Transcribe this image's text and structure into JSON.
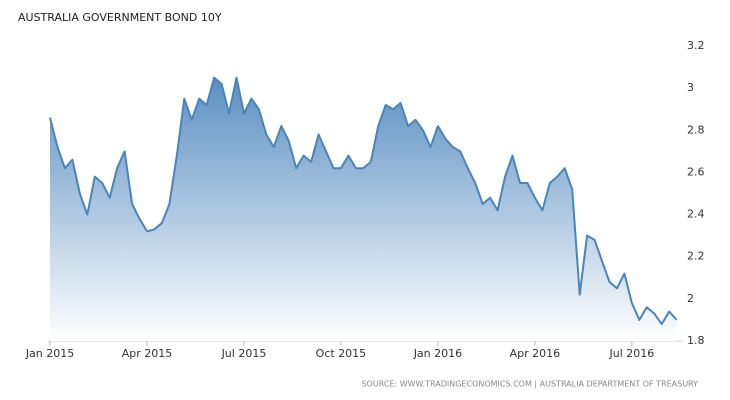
{
  "chart_data": {
    "type": "area",
    "title": "AUSTRALIA GOVERNMENT BOND 10Y",
    "source": "SOURCE: WWW.TRADINGECONOMICS.COM | AUSTRALIA DEPARTMENT OF TREASURY",
    "categories": [
      "Jan 2015",
      null,
      null,
      null,
      null,
      null,
      null,
      null,
      null,
      null,
      null,
      null,
      null,
      "Apr 2015",
      null,
      null,
      null,
      null,
      null,
      null,
      null,
      null,
      null,
      null,
      null,
      null,
      "Jul 2015",
      null,
      null,
      null,
      null,
      null,
      null,
      null,
      null,
      null,
      null,
      null,
      null,
      "Oct 2015",
      null,
      null,
      null,
      null,
      null,
      null,
      null,
      null,
      null,
      null,
      null,
      null,
      "Jan 2016",
      null,
      null,
      null,
      null,
      null,
      null,
      null,
      null,
      null,
      null,
      null,
      null,
      "Apr 2016",
      null,
      null,
      null,
      null,
      null,
      null,
      null,
      null,
      null,
      null,
      null,
      null,
      "Jul 2016",
      null,
      null,
      null,
      null,
      null,
      null
    ],
    "values": [
      2.86,
      2.72,
      2.62,
      2.66,
      2.5,
      2.4,
      2.58,
      2.55,
      2.48,
      2.62,
      2.7,
      2.45,
      2.38,
      2.32,
      2.33,
      2.36,
      2.45,
      2.68,
      2.95,
      2.85,
      2.95,
      2.92,
      3.05,
      3.02,
      2.88,
      3.05,
      2.88,
      2.95,
      2.9,
      2.78,
      2.72,
      2.82,
      2.75,
      2.62,
      2.68,
      2.65,
      2.78,
      2.7,
      2.62,
      2.62,
      2.68,
      2.62,
      2.62,
      2.65,
      2.82,
      2.92,
      2.9,
      2.93,
      2.82,
      2.85,
      2.8,
      2.72,
      2.82,
      2.76,
      2.72,
      2.7,
      2.62,
      2.55,
      2.45,
      2.48,
      2.42,
      2.58,
      2.68,
      2.55,
      2.55,
      2.48,
      2.42,
      2.55,
      2.58,
      2.62,
      2.52,
      2.02,
      2.3,
      2.28,
      2.18,
      2.08,
      2.05,
      2.12,
      1.98,
      1.9,
      1.96,
      1.93,
      1.88,
      1.94,
      1.9
    ],
    "color": "#4a84b8",
    "ylim": [
      1.8,
      3.2
    ],
    "yticks": [
      1.8,
      2,
      2.2,
      2.4,
      2.6,
      2.8,
      3,
      3.2
    ],
    "y_axis_side": "right",
    "grid": false
  }
}
